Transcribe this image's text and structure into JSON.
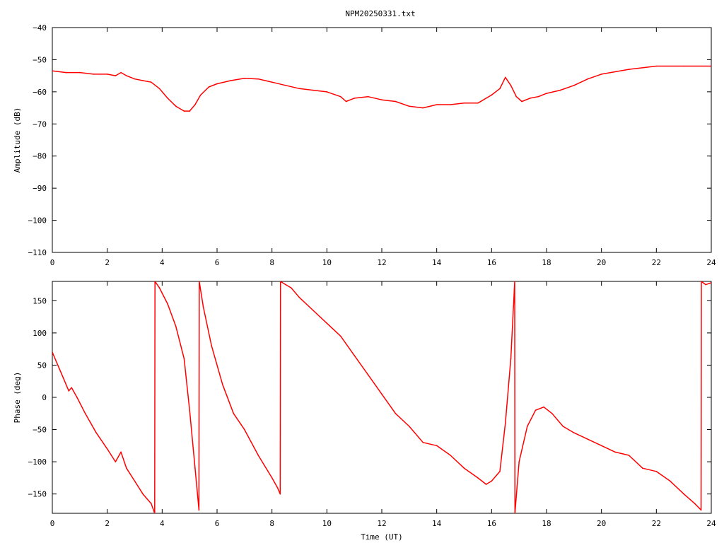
{
  "title": "NPM20250331.txt",
  "colors": {
    "trace": "#ff0000",
    "axis": "#000000",
    "background": "#ffffff"
  },
  "chart_data": [
    {
      "type": "line",
      "xlabel": "",
      "ylabel": "Amplitude (dB)",
      "xlim": [
        0,
        24
      ],
      "ylim": [
        -110,
        -40
      ],
      "x_ticks": [
        0,
        2,
        4,
        6,
        8,
        10,
        12,
        14,
        16,
        18,
        20,
        22,
        24
      ],
      "y_ticks": [
        -110,
        -100,
        -90,
        -80,
        -70,
        -60,
        -50,
        -40
      ],
      "grid": false,
      "series": [
        {
          "x": [
            0,
            0.5,
            1,
            1.5,
            2,
            2.3,
            2.5,
            2.7,
            3,
            3.3,
            3.6,
            3.9,
            4.2,
            4.5,
            4.8,
            5,
            5.2,
            5.4,
            5.7,
            6,
            6.5,
            7,
            7.5,
            8,
            8.5,
            9,
            9.5,
            10,
            10.5,
            10.7,
            11,
            11.5,
            12,
            12.5,
            13,
            13.5,
            14,
            14.5,
            15,
            15.5,
            16,
            16.3,
            16.5,
            16.7,
            16.9,
            17.1,
            17.4,
            17.7,
            18,
            18.5,
            19,
            19.5,
            20,
            21,
            22,
            23,
            24
          ],
          "values": [
            -53.5,
            -54,
            -54,
            -54.5,
            -54.5,
            -55,
            -54,
            -55,
            -56,
            -56.5,
            -57,
            -59,
            -62,
            -64.5,
            -66,
            -66,
            -64,
            -61,
            -58.5,
            -57.5,
            -56.5,
            -55.8,
            -56,
            -57,
            -58,
            -59,
            -59.5,
            -60,
            -61.5,
            -63,
            -62,
            -61.5,
            -62.5,
            -63,
            -64.5,
            -65,
            -64,
            -64,
            -63.5,
            -63.5,
            -61,
            -59,
            -55.5,
            -58,
            -61.5,
            -63,
            -62,
            -61.5,
            -60.5,
            -59.5,
            -58,
            -56,
            -54.5,
            -53,
            -52,
            -52,
            -52
          ]
        }
      ]
    },
    {
      "type": "line",
      "xlabel": "Time (UT)",
      "ylabel": "Phase (deg)",
      "xlim": [
        0,
        24
      ],
      "ylim": [
        -180,
        180
      ],
      "x_ticks": [
        0,
        2,
        4,
        6,
        8,
        10,
        12,
        14,
        16,
        18,
        20,
        22,
        24
      ],
      "y_ticks": [
        -150,
        -100,
        -50,
        0,
        50,
        100,
        150
      ],
      "grid": false,
      "series": [
        {
          "x": [
            0,
            0.3,
            0.6,
            0.7,
            0.9,
            1.2,
            1.6,
            2,
            2.3,
            2.5,
            2.7,
            3,
            3.3,
            3.6,
            3.73,
            3.74,
            3.9,
            4.2,
            4.5,
            4.8,
            5,
            5.2,
            5.34,
            5.35,
            5.5,
            5.8,
            6.2,
            6.6,
            7,
            7.5,
            8,
            8.2,
            8.3,
            8.31,
            8.5,
            8.7,
            9,
            9.5,
            10,
            10.5,
            11,
            11.5,
            12,
            12.5,
            13,
            13.5,
            14,
            14.5,
            15,
            15.5,
            15.8,
            16,
            16.3,
            16.5,
            16.7,
            16.84,
            16.85,
            17,
            17.3,
            17.6,
            17.9,
            18.2,
            18.6,
            19,
            19.5,
            20,
            20.5,
            21,
            21.5,
            22,
            22.5,
            23,
            23.4,
            23.63,
            23.64,
            23.8,
            24
          ],
          "values": [
            70,
            40,
            10,
            15,
            0,
            -25,
            -55,
            -80,
            -100,
            -85,
            -110,
            -130,
            -150,
            -165,
            -180,
            180,
            170,
            145,
            110,
            60,
            -20,
            -110,
            -175,
            180,
            140,
            80,
            20,
            -25,
            -50,
            -90,
            -125,
            -140,
            -150,
            180,
            175,
            170,
            155,
            135,
            115,
            95,
            65,
            35,
            5,
            -25,
            -45,
            -70,
            -75,
            -90,
            -110,
            -125,
            -135,
            -130,
            -115,
            -40,
            60,
            180,
            -180,
            -100,
            -45,
            -20,
            -15,
            -25,
            -45,
            -55,
            -65,
            -75,
            -85,
            -90,
            -110,
            -115,
            -130,
            -150,
            -165,
            -175,
            180,
            175,
            178
          ]
        }
      ]
    }
  ]
}
